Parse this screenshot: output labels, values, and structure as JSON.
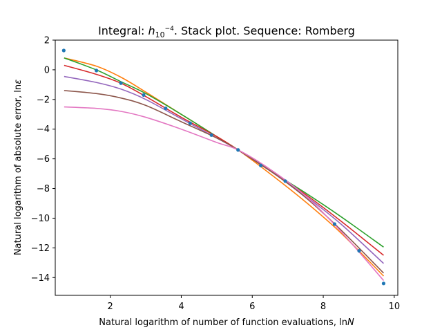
{
  "chart_data": {
    "type": "line",
    "title": {
      "prefix": "Integral: ",
      "h": "h",
      "sub": "10",
      "sup": "−4",
      "suffix": ". Stack plot. Sequence: Romberg"
    },
    "xlabel": {
      "text": "Natural logarithm of number of function evaluations, ln",
      "var": "N"
    },
    "ylabel": {
      "text": "Natural logarithm of absolute error, ln",
      "var": "ε"
    },
    "xlim": [
      0.45,
      10.1
    ],
    "ylim": [
      -15.2,
      2.0
    ],
    "xticks": [
      2,
      4,
      6,
      8,
      10
    ],
    "yticks": [
      2,
      0,
      -2,
      -4,
      -6,
      -8,
      -10,
      -12,
      -14
    ],
    "grid": false,
    "points": {
      "color": "#1f77b4",
      "x": [
        0.69,
        1.61,
        2.3,
        2.94,
        3.56,
        4.25,
        4.85,
        5.6,
        6.24,
        6.93,
        8.32,
        9.01,
        9.7
      ],
      "y": [
        1.3,
        -0.05,
        -0.9,
        -1.7,
        -2.6,
        -3.6,
        -4.4,
        -5.4,
        -6.45,
        -7.5,
        -10.4,
        -12.2,
        -14.4
      ]
    },
    "series": [
      {
        "color": "#ff7f0e",
        "x": [
          0.7,
          1.6,
          2.3,
          3.0,
          4.0,
          5.0,
          5.6,
          6.5,
          7.5,
          8.5,
          9.7
        ],
        "y": [
          0.8,
          0.25,
          -0.5,
          -1.5,
          -3.0,
          -4.5,
          -5.4,
          -7.0,
          -8.9,
          -11.0,
          -13.9
        ]
      },
      {
        "color": "#2ca02c",
        "x": [
          0.7,
          1.6,
          2.3,
          3.0,
          4.0,
          5.0,
          5.6,
          6.5,
          7.5,
          8.5,
          9.7
        ],
        "y": [
          0.8,
          0.0,
          -0.8,
          -1.6,
          -3.0,
          -4.5,
          -5.4,
          -6.8,
          -8.3,
          -9.9,
          -11.95
        ]
      },
      {
        "color": "#d62728",
        "x": [
          0.7,
          1.6,
          2.3,
          3.0,
          4.0,
          5.0,
          5.6,
          6.5,
          7.5,
          8.5,
          9.7
        ],
        "y": [
          0.3,
          -0.3,
          -0.9,
          -1.8,
          -3.2,
          -4.5,
          -5.4,
          -6.8,
          -8.4,
          -10.2,
          -12.5
        ]
      },
      {
        "color": "#9467bd",
        "x": [
          0.7,
          1.6,
          2.3,
          3.0,
          4.0,
          5.0,
          5.6,
          6.5,
          7.5,
          8.5,
          9.7
        ],
        "y": [
          -0.45,
          -0.85,
          -1.3,
          -2.0,
          -3.3,
          -4.6,
          -5.4,
          -6.8,
          -8.5,
          -10.4,
          -13.05
        ]
      },
      {
        "color": "#8c564b",
        "x": [
          0.7,
          1.6,
          2.3,
          3.0,
          4.0,
          5.0,
          5.6,
          6.5,
          7.5,
          8.5,
          9.7
        ],
        "y": [
          -1.4,
          -1.6,
          -1.9,
          -2.4,
          -3.5,
          -4.6,
          -5.4,
          -6.8,
          -8.6,
          -10.8,
          -13.7
        ]
      },
      {
        "color": "#e377c2",
        "x": [
          0.7,
          1.6,
          2.3,
          3.0,
          4.0,
          5.0,
          5.6,
          6.5,
          7.5,
          8.5,
          9.7
        ],
        "y": [
          -2.5,
          -2.6,
          -2.8,
          -3.2,
          -4.0,
          -4.9,
          -5.4,
          -6.7,
          -8.5,
          -10.9,
          -14.2
        ]
      }
    ]
  }
}
